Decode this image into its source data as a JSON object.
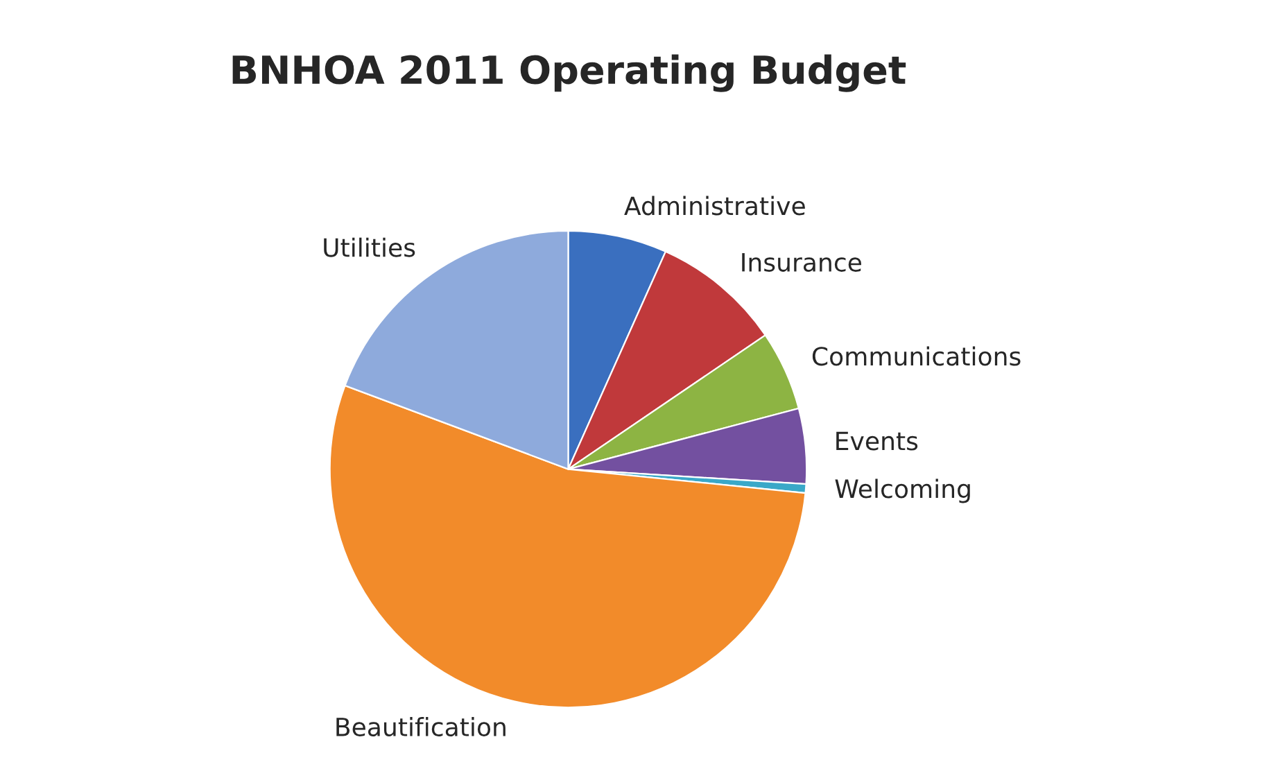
{
  "chart_data": {
    "type": "pie",
    "title": "BNHOA 2011 Operating Budget",
    "categories": [
      "Administrative",
      "Insurance",
      "Communications",
      "Events",
      "Welcoming",
      "Beautification",
      "Utilities"
    ],
    "values": [
      6.7,
      8.8,
      5.4,
      5.1,
      0.6,
      54.1,
      19.3
    ],
    "colors": [
      "#3a6fbf",
      "#c0393b",
      "#8db443",
      "#7350a0",
      "#3aa8c8",
      "#f28b2a",
      "#8eaadc"
    ],
    "legend": false
  }
}
